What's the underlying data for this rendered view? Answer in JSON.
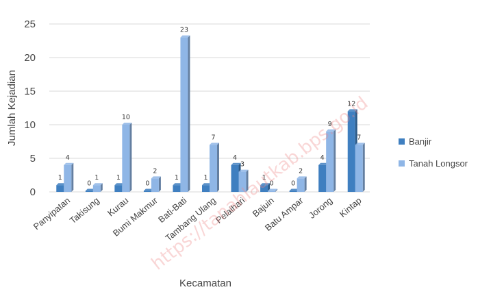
{
  "chart_data": {
    "type": "bar",
    "categories": [
      "Panyipatan",
      "Takisung",
      "Kurau",
      "Bumi Makmur",
      "Bati-Bati",
      "Tambang Ulang",
      "Pelaihari",
      "Bajuin",
      "Batu Ampar",
      "Jorong",
      "Kintap"
    ],
    "series": [
      {
        "name": "Banjir",
        "color": "#3f7fc0",
        "values": [
          1,
          0,
          1,
          0,
          1,
          1,
          4,
          1,
          0,
          4,
          12
        ]
      },
      {
        "name": "Tanah Longsor",
        "color": "#8fb6e6",
        "values": [
          4,
          1,
          10,
          2,
          23,
          7,
          3,
          0,
          2,
          9,
          7
        ]
      }
    ],
    "xlabel": "Kecamatan",
    "ylabel": "Jumlah Kejadian",
    "ylim": [
      0,
      25
    ],
    "yticks": [
      0,
      5,
      10,
      15,
      20,
      25
    ],
    "grid": true,
    "legend": "right"
  },
  "watermark": "https://tanahlautkab.bps.go.id"
}
